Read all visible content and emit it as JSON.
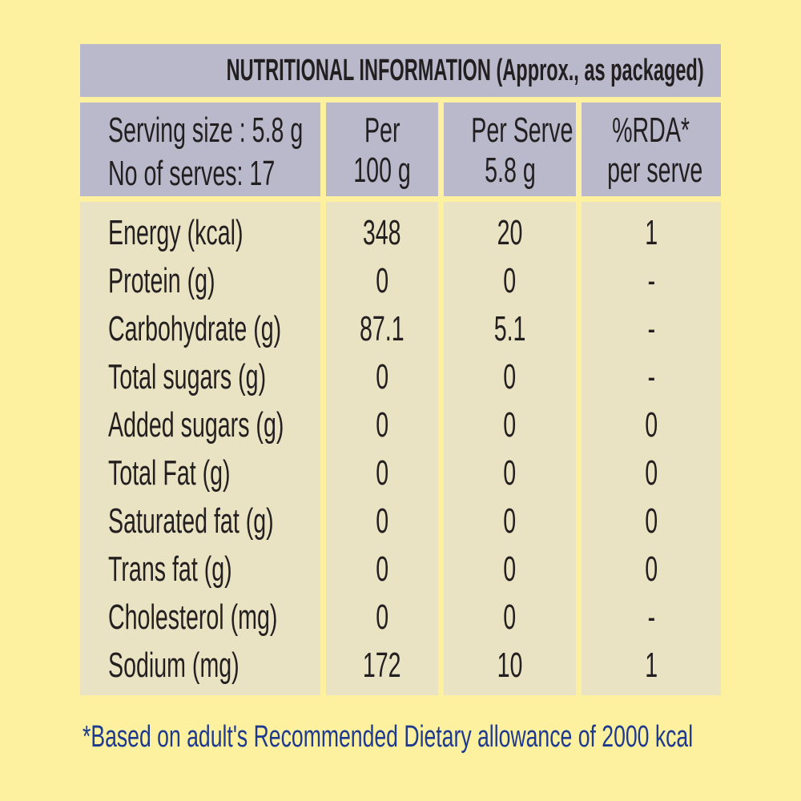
{
  "title": "NUTRITIONAL INFORMATION (Approx., as packaged)",
  "header": {
    "col1": [
      "Serving size :  5.8 g",
      "No of serves: 17"
    ],
    "col2": [
      "Per",
      "100 g"
    ],
    "col3": [
      "Per Serve",
      "5.8 g"
    ],
    "col4": [
      "%RDA*",
      "per serve"
    ]
  },
  "rows": [
    {
      "nutrient": "Energy (kcal)",
      "per_100g": "348",
      "per_serve": "20",
      "rda": "1"
    },
    {
      "nutrient": "Protein (g)",
      "per_100g": "0",
      "per_serve": "0",
      "rda": "-"
    },
    {
      "nutrient": "Carbohydrate (g)",
      "per_100g": "87.1",
      "per_serve": "5.1",
      "rda": "-"
    },
    {
      "nutrient": "Total sugars (g)",
      "per_100g": "0",
      "per_serve": "0",
      "rda": "-"
    },
    {
      "nutrient": "Added sugars (g)",
      "per_100g": "0",
      "per_serve": "0",
      "rda": "0"
    },
    {
      "nutrient": "Total Fat (g)",
      "per_100g": "0",
      "per_serve": "0",
      "rda": "0"
    },
    {
      "nutrient": "Saturated fat (g)",
      "per_100g": "0",
      "per_serve": "0",
      "rda": "0"
    },
    {
      "nutrient": "Trans fat (g)",
      "per_100g": "0",
      "per_serve": "0",
      "rda": "0"
    },
    {
      "nutrient": "Cholesterol (mg)",
      "per_100g": "0",
      "per_serve": "0",
      "rda": "-"
    },
    {
      "nutrient": "Sodium (mg)",
      "per_100g": "172",
      "per_serve": "10",
      "rda": "1"
    }
  ],
  "footnote": "*Based on adult's Recommended Dietary allowance of 2000 kcal",
  "colors": {
    "background": "#fdf1a0",
    "header": "#b9b9cb",
    "body": "#e9e3c3",
    "footnote": "#1e3a8f"
  }
}
